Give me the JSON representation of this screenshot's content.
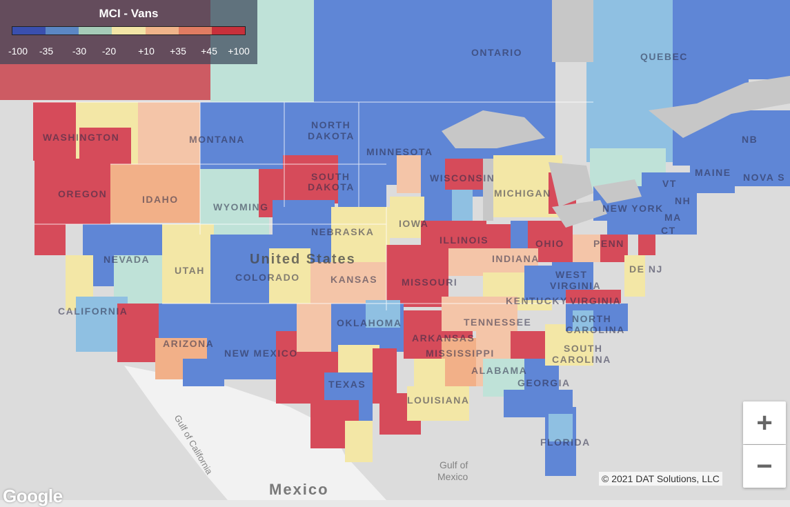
{
  "legend": {
    "title": "MCI - Vans",
    "colors": [
      "#3a4fae",
      "#5b87c4",
      "#a6cbb8",
      "#f2e5a6",
      "#f0b48a",
      "#e07c62",
      "#c8303b"
    ],
    "ticks": [
      "-100",
      "-35",
      "-30",
      "-20",
      "+10",
      "+35",
      "+45",
      "+100"
    ]
  },
  "labels": {
    "ontario": "ONTARIO",
    "quebec": "QUEBEC",
    "washington": "WASHINGTON",
    "oregon": "OREGON",
    "idaho": "IDAHO",
    "montana": "MONTANA",
    "wyoming": "WYOMING",
    "north_dakota_1": "NORTH",
    "north_dakota_2": "DAKOTA",
    "south_dakota_1": "SOUTH",
    "south_dakota_2": "DAKOTA",
    "minnesota": "MINNESOTA",
    "wisconsin": "WISCONSIN",
    "michigan": "MICHIGAN",
    "nebraska": "NEBRASKA",
    "iowa": "IOWA",
    "illinois": "ILLINOIS",
    "indiana": "INDIANA",
    "ohio": "OHIO",
    "nevada": "NEVADA",
    "utah": "UTAH",
    "colorado": "COLORADO",
    "kansas": "KANSAS",
    "missouri": "MISSOURI",
    "kentucky": "KENTUCKY",
    "west_virginia_1": "WEST",
    "west_virginia_2": "VIRGINIA",
    "virginia": "VIRGINIA",
    "california": "CALIFORNIA",
    "arizona": "ARIZONA",
    "new_mexico": "NEW MEXICO",
    "oklahoma": "OKLAHOMA",
    "arkansas": "ARKANSAS",
    "tennessee": "TENNESSEE",
    "north_carolina_1": "NORTH",
    "north_carolina_2": "CAROLINA",
    "south_carolina_1": "SOUTH",
    "south_carolina_2": "CAROLINA",
    "mississippi": "MISSISSIPPI",
    "alabama": "ALABAMA",
    "georgia": "GEORGIA",
    "texas": "TEXAS",
    "louisiana": "LOUISIANA",
    "florida": "FLORIDA",
    "new_york": "NEW YORK",
    "penn": "PENN",
    "maine": "MAINE",
    "vt": "VT",
    "nh": "NH",
    "ma": "MA",
    "ct": "CT",
    "de_nj": "DE NJ",
    "nb": "NB",
    "nova_scotia": "NOVA S",
    "united_states": "United States",
    "mexico": "Mexico",
    "gulf_california": "Gulf of California",
    "gulf_mexico_1": "Gulf of",
    "gulf_mexico_2": "Mexico"
  },
  "zoom": {
    "in_label": "+",
    "out_label": "−"
  },
  "attribution": "© 2021 DAT Solutions, LLC",
  "google_logo": "Google"
}
